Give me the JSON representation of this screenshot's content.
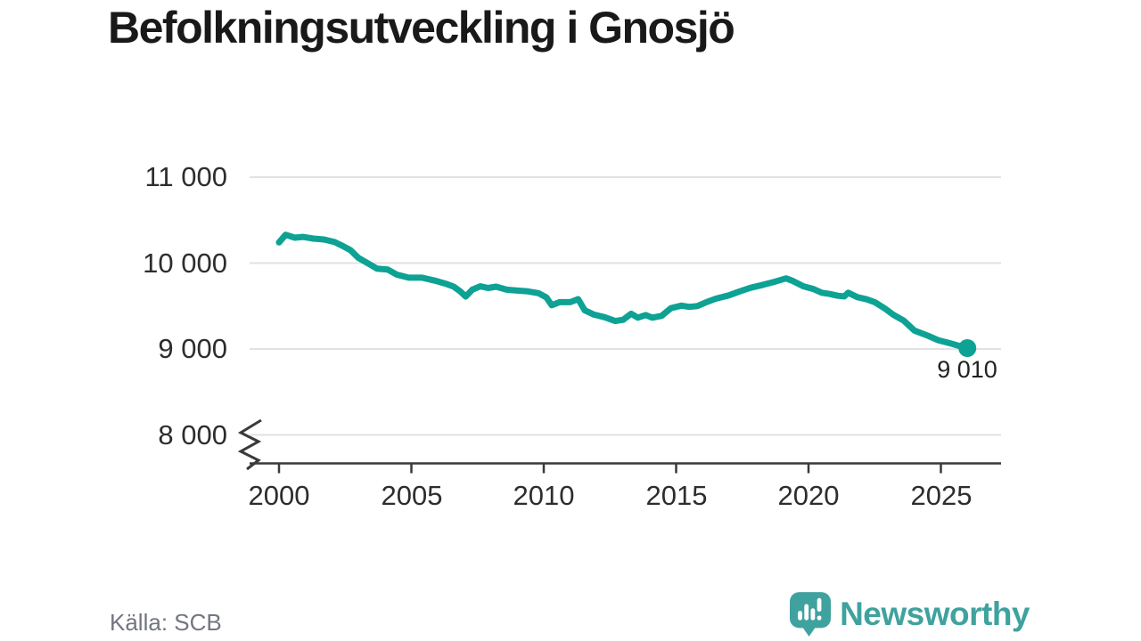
{
  "title": "Befolkningsutveckling i Gnosjö",
  "source": "Källa: SCB",
  "logo": {
    "text": "Newsworthy"
  },
  "colors": {
    "line": "#0DA294",
    "grid": "#E2E2E2",
    "axis": "#3A3A3A",
    "tick_text": "#2D2D2D",
    "end_label_text": "#222222",
    "source_text": "#73767F",
    "logo": "#3FA29E",
    "background": "#FFFFFF"
  },
  "chart_data": {
    "type": "line",
    "title": "Befolkningsutveckling i Gnosjö",
    "xlabel": "",
    "ylabel": "",
    "x_range": [
      1998.9,
      2027.3
    ],
    "y_range": [
      8000,
      11000
    ],
    "y_axis_break": true,
    "grid": "horizontal",
    "legend": "none",
    "x_ticks": [
      "2000",
      "2005",
      "2010",
      "2015",
      "2020",
      "2025"
    ],
    "x_tick_years": [
      2000,
      2005,
      2010,
      2015,
      2020,
      2025
    ],
    "y_ticks": [
      11000,
      10000,
      9000,
      8000
    ],
    "y_tick_labels": [
      "11 000",
      "10 000",
      "9 000",
      "8 000"
    ],
    "end_label": "9 010",
    "end_value": 9010,
    "series": [
      {
        "name": "Befolkning",
        "color": "#0DA294",
        "points": [
          [
            2000.0,
            10240
          ],
          [
            2000.25,
            10330
          ],
          [
            2000.6,
            10295
          ],
          [
            2000.9,
            10305
          ],
          [
            2001.3,
            10285
          ],
          [
            2001.7,
            10275
          ],
          [
            2002.1,
            10245
          ],
          [
            2002.4,
            10200
          ],
          [
            2002.7,
            10150
          ],
          [
            2003.0,
            10060
          ],
          [
            2003.4,
            9990
          ],
          [
            2003.7,
            9935
          ],
          [
            2004.1,
            9925
          ],
          [
            2004.45,
            9865
          ],
          [
            2004.9,
            9830
          ],
          [
            2005.4,
            9830
          ],
          [
            2005.9,
            9795
          ],
          [
            2006.3,
            9760
          ],
          [
            2006.6,
            9725
          ],
          [
            2006.85,
            9670
          ],
          [
            2007.05,
            9610
          ],
          [
            2007.3,
            9690
          ],
          [
            2007.6,
            9730
          ],
          [
            2007.9,
            9710
          ],
          [
            2008.2,
            9725
          ],
          [
            2008.6,
            9690
          ],
          [
            2009.0,
            9680
          ],
          [
            2009.4,
            9670
          ],
          [
            2009.8,
            9650
          ],
          [
            2010.1,
            9600
          ],
          [
            2010.3,
            9510
          ],
          [
            2010.6,
            9545
          ],
          [
            2011.0,
            9545
          ],
          [
            2011.3,
            9580
          ],
          [
            2011.55,
            9450
          ],
          [
            2011.9,
            9400
          ],
          [
            2012.3,
            9370
          ],
          [
            2012.7,
            9325
          ],
          [
            2013.0,
            9340
          ],
          [
            2013.3,
            9410
          ],
          [
            2013.55,
            9365
          ],
          [
            2013.85,
            9395
          ],
          [
            2014.1,
            9365
          ],
          [
            2014.45,
            9385
          ],
          [
            2014.8,
            9475
          ],
          [
            2015.2,
            9505
          ],
          [
            2015.5,
            9490
          ],
          [
            2015.8,
            9500
          ],
          [
            2016.1,
            9540
          ],
          [
            2016.5,
            9585
          ],
          [
            2017.0,
            9625
          ],
          [
            2017.4,
            9670
          ],
          [
            2017.8,
            9712
          ],
          [
            2018.3,
            9748
          ],
          [
            2018.75,
            9785
          ],
          [
            2019.15,
            9822
          ],
          [
            2019.4,
            9793
          ],
          [
            2019.8,
            9731
          ],
          [
            2020.2,
            9696
          ],
          [
            2020.5,
            9655
          ],
          [
            2020.8,
            9640
          ],
          [
            2021.1,
            9620
          ],
          [
            2021.35,
            9612
          ],
          [
            2021.5,
            9655
          ],
          [
            2021.85,
            9603
          ],
          [
            2022.2,
            9578
          ],
          [
            2022.5,
            9545
          ],
          [
            2022.9,
            9468
          ],
          [
            2023.2,
            9400
          ],
          [
            2023.6,
            9330
          ],
          [
            2024.0,
            9215
          ],
          [
            2024.5,
            9155
          ],
          [
            2024.9,
            9103
          ],
          [
            2025.4,
            9062
          ],
          [
            2025.75,
            9030
          ],
          [
            2026.0,
            9010
          ]
        ]
      }
    ]
  }
}
